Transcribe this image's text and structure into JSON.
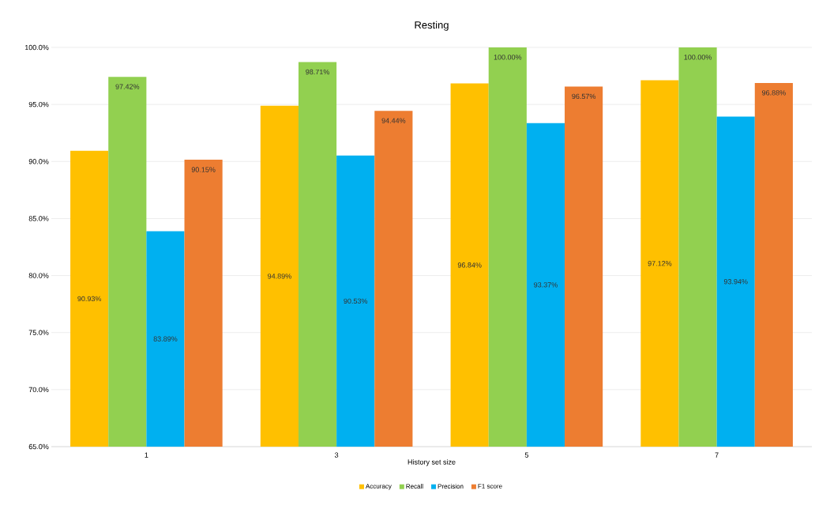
{
  "chart_data": {
    "type": "bar",
    "title": "Resting",
    "xlabel": "History set size",
    "categories": [
      "1",
      "3",
      "5",
      "7"
    ],
    "series": [
      {
        "name": "Accuracy",
        "color": "#ffc000",
        "values": [
          90.93,
          94.89,
          96.84,
          97.12
        ],
        "value_labels": [
          "90.93%",
          "94.89%",
          "96.84%",
          "97.12%"
        ]
      },
      {
        "name": "Recall",
        "color": "#92d050",
        "values": [
          97.42,
          98.71,
          100.0,
          100.0
        ],
        "value_labels": [
          "97.42%",
          "98.71%",
          "100.00%",
          "100.00%"
        ]
      },
      {
        "name": "Precision",
        "color": "#00b0f0",
        "values": [
          83.89,
          90.53,
          93.37,
          93.94
        ],
        "value_labels": [
          "83.89%",
          "90.53%",
          "93.37%",
          "93.94%"
        ]
      },
      {
        "name": "F1 score",
        "color": "#ed7d31",
        "values": [
          90.15,
          94.44,
          96.57,
          96.88
        ],
        "value_labels": [
          "90.15%",
          "94.44%",
          "96.57%",
          "96.88%"
        ]
      }
    ],
    "ylim": [
      65,
      100
    ],
    "yticks": [
      {
        "value": 65,
        "label": "65.0%"
      },
      {
        "value": 70,
        "label": "70.0%"
      },
      {
        "value": 75,
        "label": "75.0%"
      },
      {
        "value": 80,
        "label": "80.0%"
      },
      {
        "value": 85,
        "label": "85.0%"
      },
      {
        "value": 90,
        "label": "90.0%"
      },
      {
        "value": 95,
        "label": "95.0%"
      },
      {
        "value": 100,
        "label": "100.0%"
      }
    ],
    "grid": "y",
    "legend": "bottom"
  }
}
